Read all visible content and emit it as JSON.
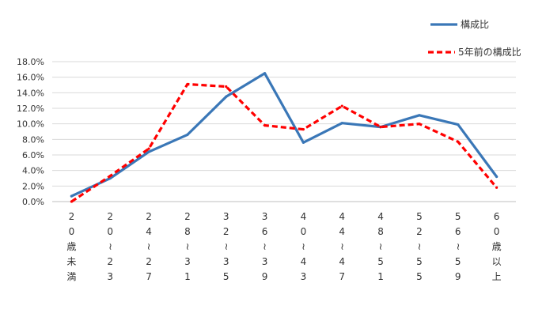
{
  "chart_data": {
    "type": "line",
    "categories": [
      "20歳未満",
      "20~23",
      "24~27",
      "28~31",
      "32~35",
      "36~39",
      "40~43",
      "44~47",
      "48~51",
      "52~55",
      "56~59",
      "60歳以上"
    ],
    "category_glyphs": [
      [
        "2",
        "0",
        "歳",
        "未",
        "満"
      ],
      [
        "2",
        "0",
        "~",
        "2",
        "3"
      ],
      [
        "2",
        "4",
        "~",
        "2",
        "7"
      ],
      [
        "2",
        "8",
        "~",
        "3",
        "1"
      ],
      [
        "3",
        "2",
        "~",
        "3",
        "5"
      ],
      [
        "3",
        "6",
        "~",
        "3",
        "9"
      ],
      [
        "4",
        "0",
        "~",
        "4",
        "3"
      ],
      [
        "4",
        "4",
        "~",
        "4",
        "7"
      ],
      [
        "4",
        "8",
        "~",
        "5",
        "1"
      ],
      [
        "5",
        "2",
        "~",
        "5",
        "5"
      ],
      [
        "5",
        "6",
        "~",
        "5",
        "9"
      ],
      [
        "6",
        "0",
        "歳",
        "以",
        "上"
      ]
    ],
    "series": [
      {
        "name": "構成比",
        "color": "#3a77b7",
        "style": "solid",
        "values": [
          0.7,
          3.0,
          6.4,
          8.6,
          13.5,
          16.5,
          7.6,
          10.1,
          9.6,
          11.1,
          9.9,
          3.2
        ]
      },
      {
        "name": "5年前の構成比",
        "color": "#ff0000",
        "style": "dashed",
        "values": [
          0.0,
          3.3,
          6.8,
          15.1,
          14.8,
          9.8,
          9.3,
          12.3,
          9.6,
          10.0,
          7.7,
          1.8
        ]
      }
    ],
    "y_ticks": [
      "0.0%",
      "2.0%",
      "4.0%",
      "6.0%",
      "8.0%",
      "10.0%",
      "12.0%",
      "14.0%",
      "16.0%",
      "18.0%"
    ],
    "ylim": [
      0,
      18
    ],
    "grid": true,
    "legend_position": "top-right"
  }
}
